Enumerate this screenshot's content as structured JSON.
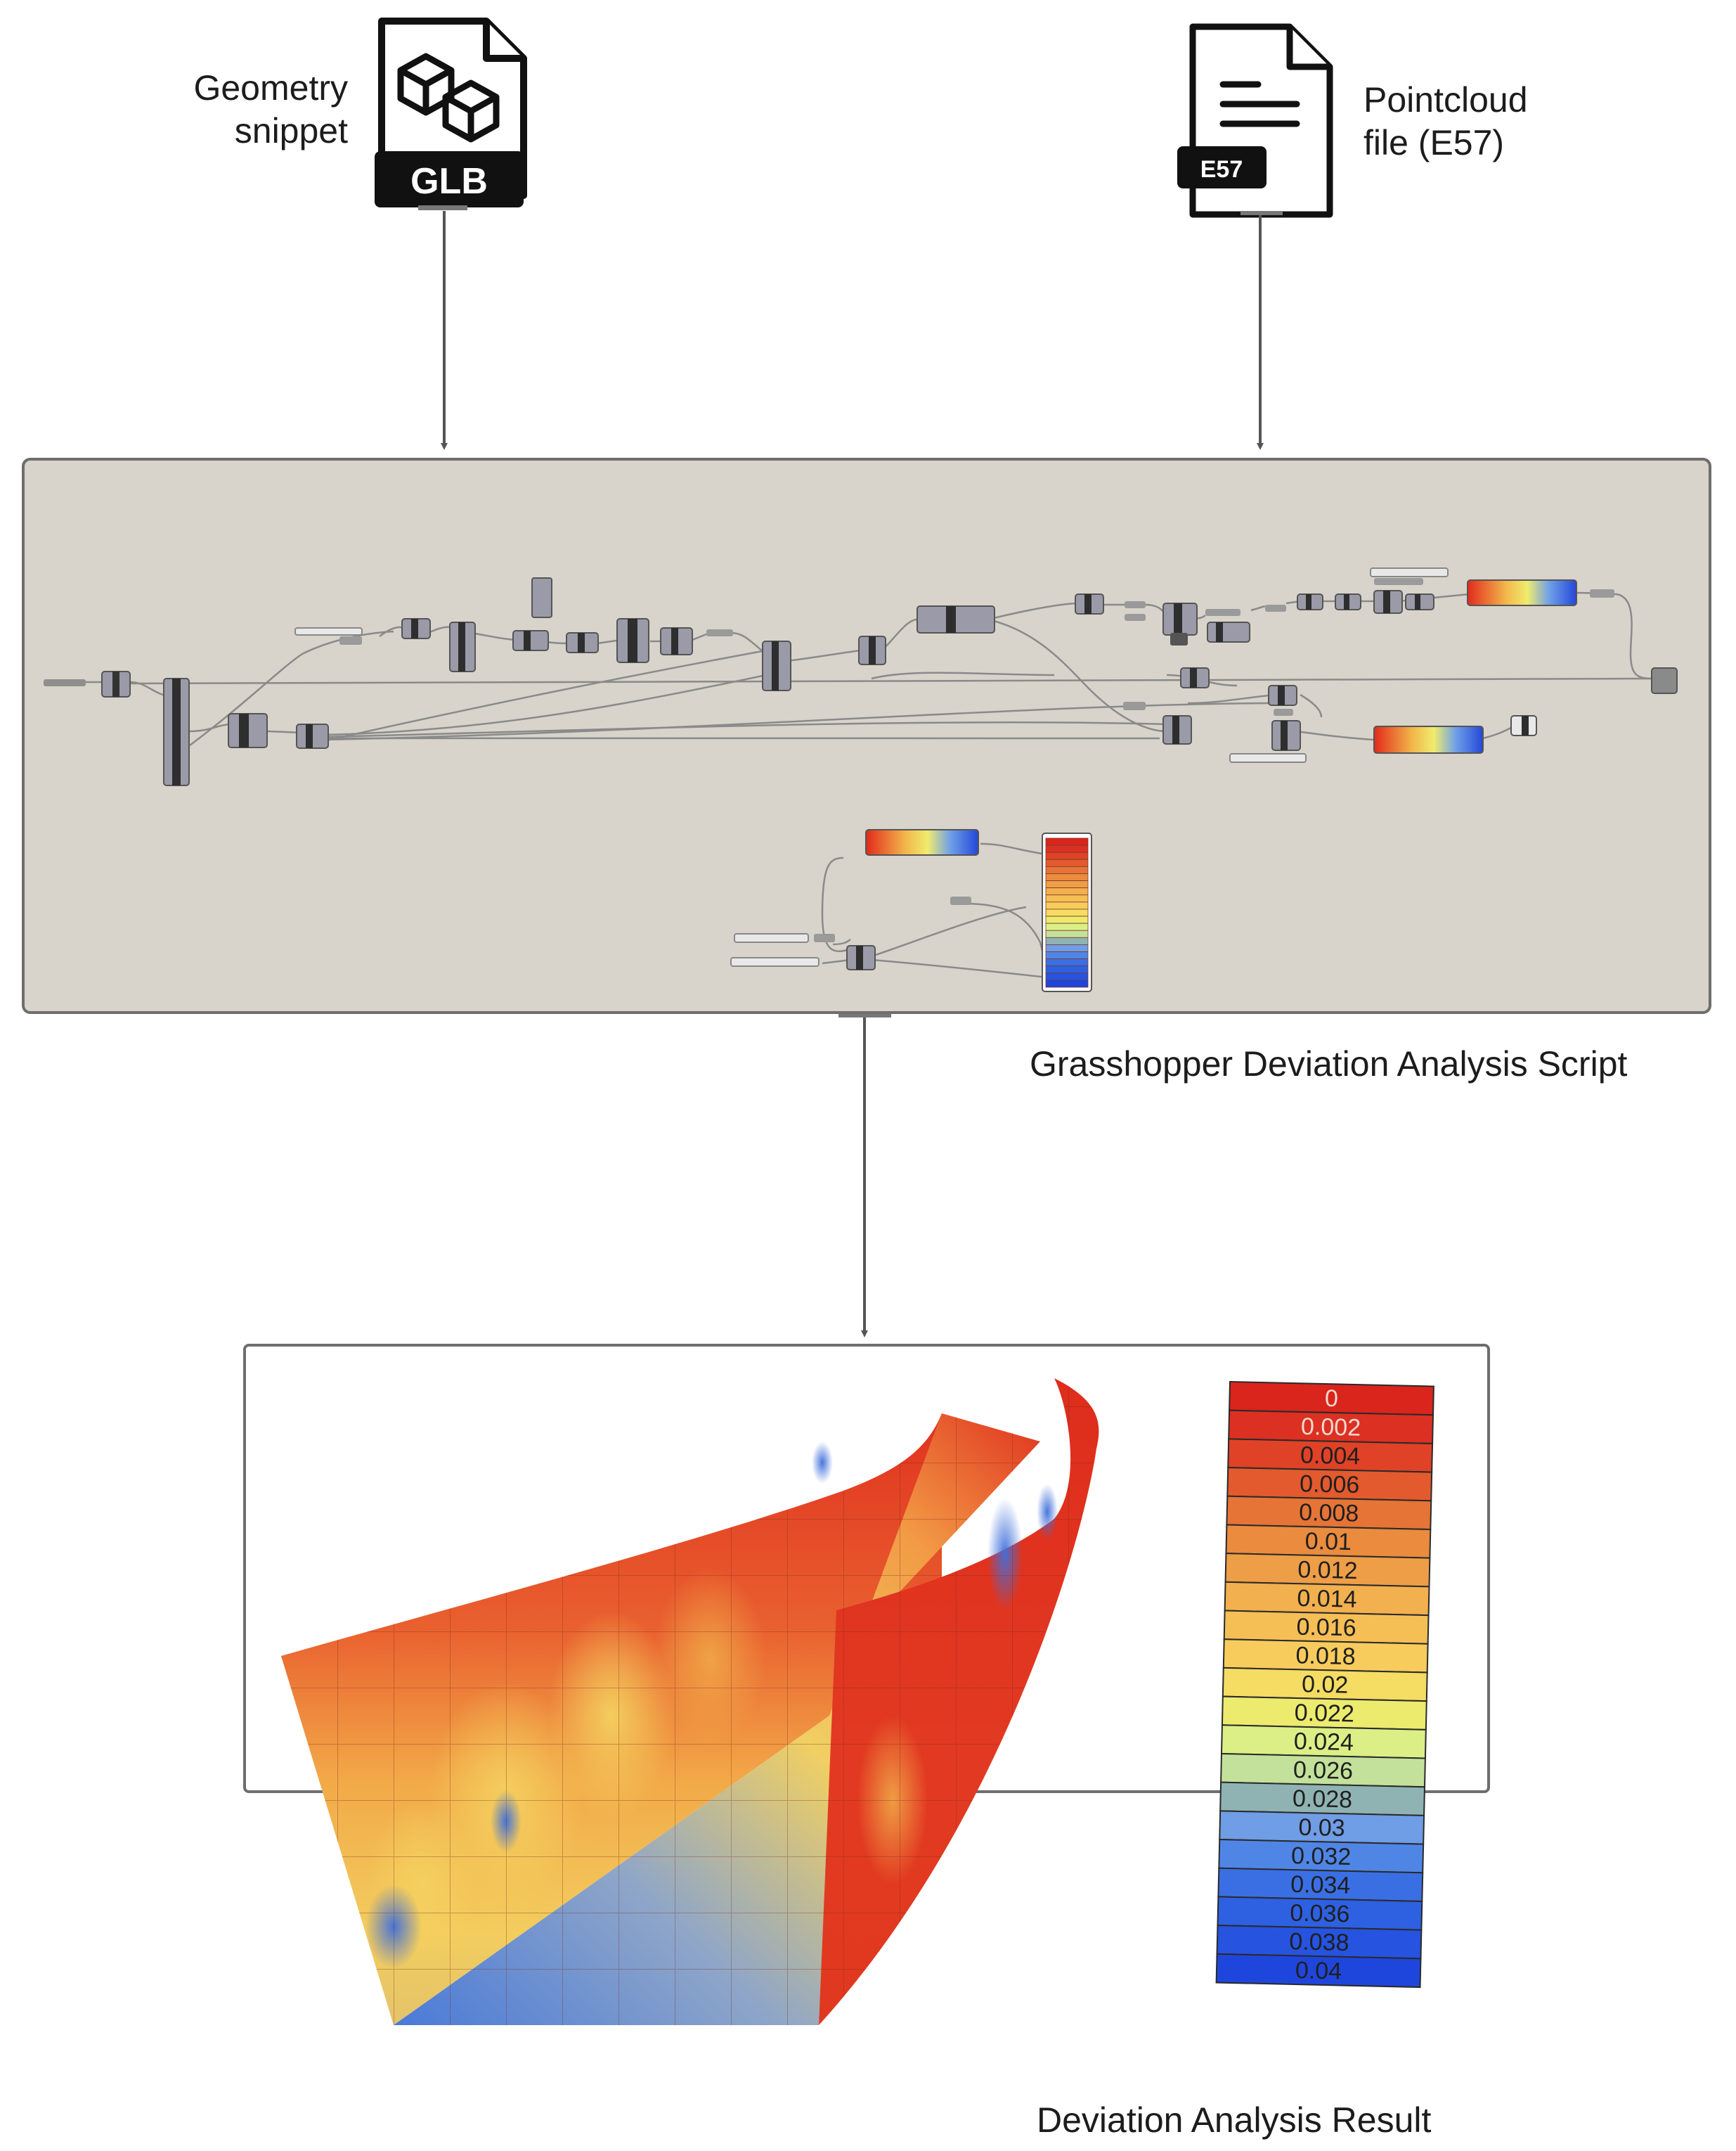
{
  "inputs": {
    "geometry": {
      "label": "Geometry snippet",
      "line1": "Geometry",
      "line2": "snippet",
      "badge": "GLB",
      "icon": "glb-file-icon"
    },
    "pointcloud": {
      "label": "Pointcloud file (E57)",
      "line1": "Pointcloud",
      "line2": "file (E57)",
      "badge": "E57",
      "icon": "e57-file-icon"
    }
  },
  "script": {
    "caption": "Grasshopper Deviation Analysis Script"
  },
  "result": {
    "caption": "Deviation Analysis Result"
  },
  "legend": {
    "values": [
      "0",
      "0.002",
      "0.004",
      "0.006",
      "0.008",
      "0.01",
      "0.012",
      "0.014",
      "0.016",
      "0.018",
      "0.02",
      "0.022",
      "0.024",
      "0.026",
      "0.028",
      "0.03",
      "0.032",
      "0.034",
      "0.036",
      "0.038",
      "0.04"
    ],
    "colors": [
      "#d9251c",
      "#dc3023",
      "#df4226",
      "#e25a2d",
      "#e57436",
      "#ea8b3e",
      "#ee9e46",
      "#f2b04e",
      "#f5bf56",
      "#f7cc5c",
      "#f5dc62",
      "#eceb6e",
      "#dcef86",
      "#c3e19a",
      "#8fb3b2",
      "#6f9de6",
      "#4f86e6",
      "#3a6fe4",
      "#2e60e2",
      "#2653df",
      "#1f46dc"
    ]
  },
  "colors": {
    "canvas_bg": "#d8d4cb",
    "canvas_border": "#7a7a7a",
    "arrow": "#555555",
    "icon_fill": "#111111"
  }
}
